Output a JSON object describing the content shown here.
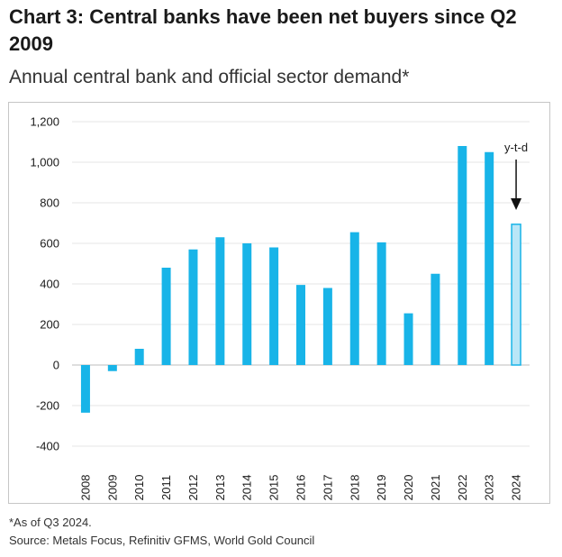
{
  "title": "Chart 3: Central banks have been net buyers since Q2 2009",
  "subtitle": "Annual central bank and official sector demand*",
  "footnote": "*As of Q3 2024.",
  "source": "Source: Metals Focus, Refinitiv GFMS, World Gold Council",
  "colors": {
    "bar": "#18b4e8",
    "bar_estimate_fill": "#b9e6f7",
    "bar_estimate_stroke": "#18b4e8",
    "grid": "#e6e6e6",
    "zero_line": "#bdbdbd"
  },
  "chart_data": {
    "type": "bar",
    "categories": [
      "2008",
      "2009",
      "2010",
      "2011",
      "2012",
      "2013",
      "2014",
      "2015",
      "2016",
      "2017",
      "2018",
      "2019",
      "2020",
      "2021",
      "2022",
      "2023",
      "2024"
    ],
    "values": [
      -235,
      -30,
      80,
      480,
      570,
      630,
      600,
      580,
      395,
      380,
      655,
      605,
      255,
      450,
      1080,
      1050,
      694
    ],
    "ylim": [
      -400,
      1200
    ],
    "yticks": [
      -400,
      -200,
      0,
      200,
      400,
      600,
      800,
      1000,
      1200
    ],
    "ytick_labels": [
      "-400",
      "-200",
      "0",
      "200",
      "400",
      "600",
      "800",
      "1,000",
      "1,200"
    ],
    "grid": true,
    "annotation": {
      "text": "y-t-d",
      "category": "2024"
    },
    "highlight_category": "2024",
    "xlabel": "",
    "ylabel": ""
  }
}
